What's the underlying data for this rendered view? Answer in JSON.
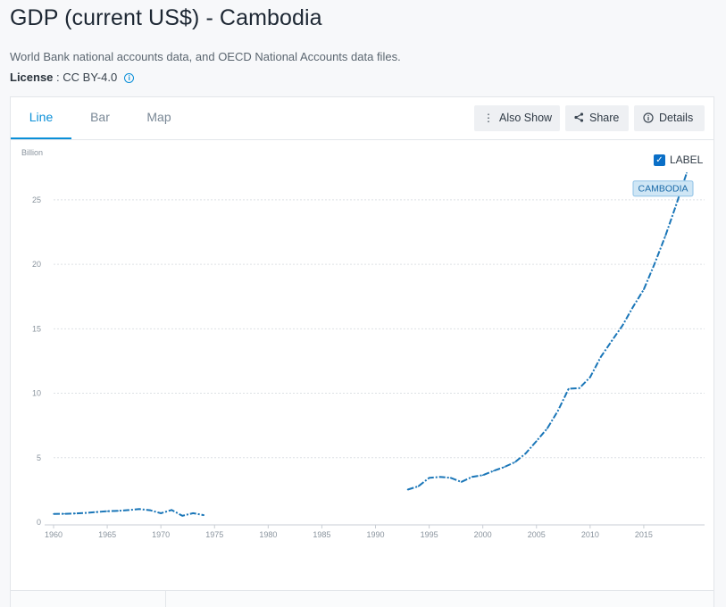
{
  "header": {
    "title": "GDP (current US$) - Cambodia",
    "source": "World Bank national accounts data, and OECD National Accounts data files.",
    "license_label": "License",
    "license_value": " : CC BY-4.0"
  },
  "tabs": [
    {
      "label": "Line",
      "active": true
    },
    {
      "label": "Bar",
      "active": false
    },
    {
      "label": "Map",
      "active": false
    }
  ],
  "toolbar": {
    "also_show": "Also Show",
    "share": "Share",
    "details": "Details"
  },
  "label_toggle": {
    "text": "LABEL",
    "checked": true
  },
  "colors": {
    "accent": "#0a8fd8",
    "series": "#1a76b8"
  },
  "chart_data": {
    "type": "line",
    "ylabel": "Billion",
    "xlim": [
      1960,
      2019
    ],
    "ylim": [
      0,
      27
    ],
    "x_ticks": [
      1960,
      1965,
      1970,
      1975,
      1980,
      1985,
      1990,
      1995,
      2000,
      2005,
      2010,
      2015
    ],
    "y_ticks": [
      0,
      5,
      10,
      15,
      20,
      25
    ],
    "grid": true,
    "series": [
      {
        "name": "CAMBODIA",
        "line_style": "dash-dot",
        "segments": [
          {
            "x": [
              1960,
              1961,
              1962,
              1963,
              1964,
              1965,
              1966,
              1967,
              1968,
              1969,
              1970,
              1971,
              1972,
              1973,
              1974
            ],
            "y": [
              0.64,
              0.65,
              0.68,
              0.72,
              0.79,
              0.85,
              0.88,
              0.94,
              1.02,
              0.93,
              0.69,
              0.95,
              0.5,
              0.7,
              0.55
            ]
          },
          {
            "x": [
              1993,
              1994,
              1995,
              1996,
              1997,
              1998,
              1999,
              2000,
              2001,
              2002,
              2003,
              2004,
              2005,
              2006,
              2007,
              2008,
              2009,
              2010,
              2011,
              2012,
              2013,
              2014,
              2015,
              2016,
              2017,
              2018,
              2019
            ],
            "y": [
              2.53,
              2.79,
              3.44,
              3.51,
              3.44,
              3.12,
              3.52,
              3.65,
              3.98,
              4.28,
              4.66,
              5.34,
              6.29,
              7.27,
              8.64,
              10.35,
              10.4,
              11.24,
              12.83,
              14.05,
              15.23,
              16.7,
              18.05,
              20.02,
              22.18,
              24.57,
              27.09
            ]
          }
        ]
      }
    ]
  }
}
